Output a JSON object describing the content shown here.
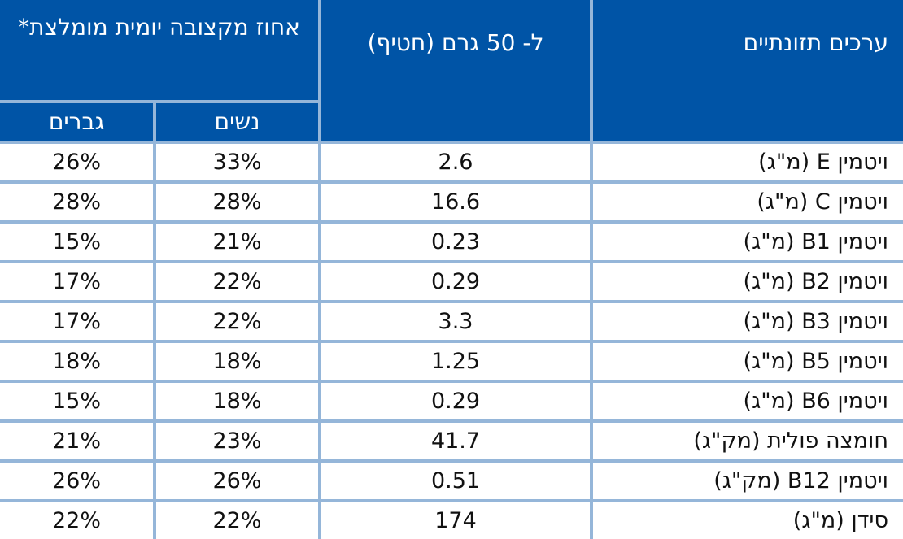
{
  "table": {
    "headers": {
      "nutrient": "ערכים תזונתיים",
      "per_serving": "ל- 50 גרם (חטיף)",
      "daily_pct": "אחוז מקצובה יומית מומלצת*",
      "women": "נשים",
      "men": "גברים"
    },
    "rows": [
      {
        "name": "ויטמין E (מ\"ג)",
        "amount": "2.6",
        "women": "33%",
        "men": "26%"
      },
      {
        "name": "ויטמין C (מ\"ג)",
        "amount": "16.6",
        "women": "28%",
        "men": "28%"
      },
      {
        "name": "ויטמין B1 (מ\"ג)",
        "amount": "0.23",
        "women": "21%",
        "men": "15%"
      },
      {
        "name": "ויטמין B2 (מ\"ג)",
        "amount": "0.29",
        "women": "22%",
        "men": "17%"
      },
      {
        "name": "ויטמין B3 (מ\"ג)",
        "amount": "3.3",
        "women": "22%",
        "men": "17%"
      },
      {
        "name": "ויטמין B5 (מ\"ג)",
        "amount": "1.25",
        "women": "18%",
        "men": "18%"
      },
      {
        "name": "ויטמין B6 (מ\"ג)",
        "amount": "0.29",
        "women": "18%",
        "men": "15%"
      },
      {
        "name": "חומצה פולית (מק\"ג)",
        "amount": "41.7",
        "women": "23%",
        "men": "21%"
      },
      {
        "name": "ויטמין B12 (מק\"ג)",
        "amount": "0.51",
        "women": "26%",
        "men": "26%"
      },
      {
        "name": "סידן (מ\"ג)",
        "amount": "174",
        "women": "22%",
        "men": "22%"
      }
    ]
  },
  "colors": {
    "header_bg": "#0054a6",
    "header_text": "#ffffff",
    "grid_line": "#95b6d9",
    "body_text": "#111111"
  }
}
